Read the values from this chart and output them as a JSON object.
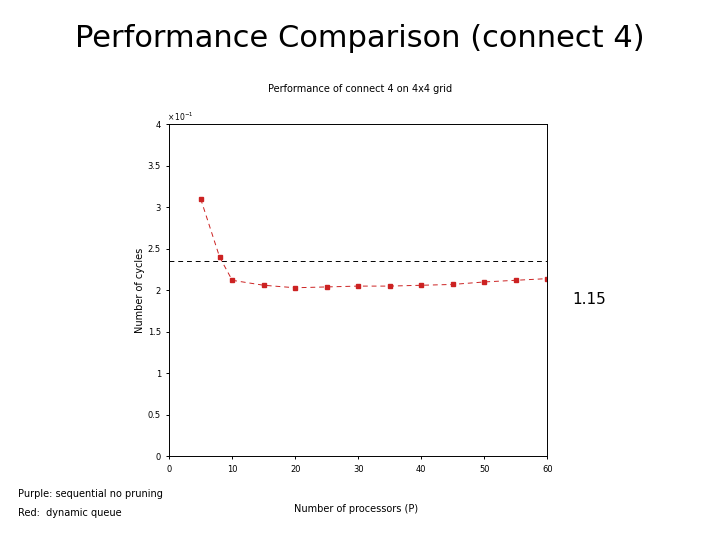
{
  "title": "Performance Comparison (connect 4)",
  "subtitle": "Performance of connect 4 on 4x4 grid",
  "xlabel": "Number of processors (P)",
  "ylabel": "Number of cycles",
  "legend_purple": "Purple: sequential no pruning",
  "legend_red": "Red:  dynamic queue",
  "annotation": "1.15",
  "xlim": [
    0,
    60
  ],
  "ylim": [
    0,
    0.4
  ],
  "xticks": [
    0,
    10,
    20,
    30,
    40,
    50,
    60
  ],
  "yticks": [
    0,
    0.05,
    0.1,
    0.15,
    0.2,
    0.25,
    0.3,
    0.35,
    0.4
  ],
  "ytick_labels": [
    "0",
    "0.5",
    "1",
    "1.5",
    "2",
    "2.5",
    "3",
    "3.5",
    "4"
  ],
  "purple_line_y": 0.235,
  "red_x": [
    5,
    8,
    10,
    15,
    20,
    25,
    30,
    35,
    40,
    45,
    50,
    55,
    60
  ],
  "red_y": [
    0.31,
    0.24,
    0.212,
    0.206,
    0.203,
    0.204,
    0.205,
    0.205,
    0.206,
    0.207,
    0.21,
    0.212,
    0.214
  ],
  "bg_color": "#ffffff",
  "red_color": "#cc2222",
  "black_color": "#000000",
  "title_fontsize": 22,
  "subtitle_fontsize": 7,
  "tick_fontsize": 6,
  "ylabel_fontsize": 7,
  "xlabel_fontsize": 7,
  "legend_fontsize": 7,
  "annotation_fontsize": 11
}
